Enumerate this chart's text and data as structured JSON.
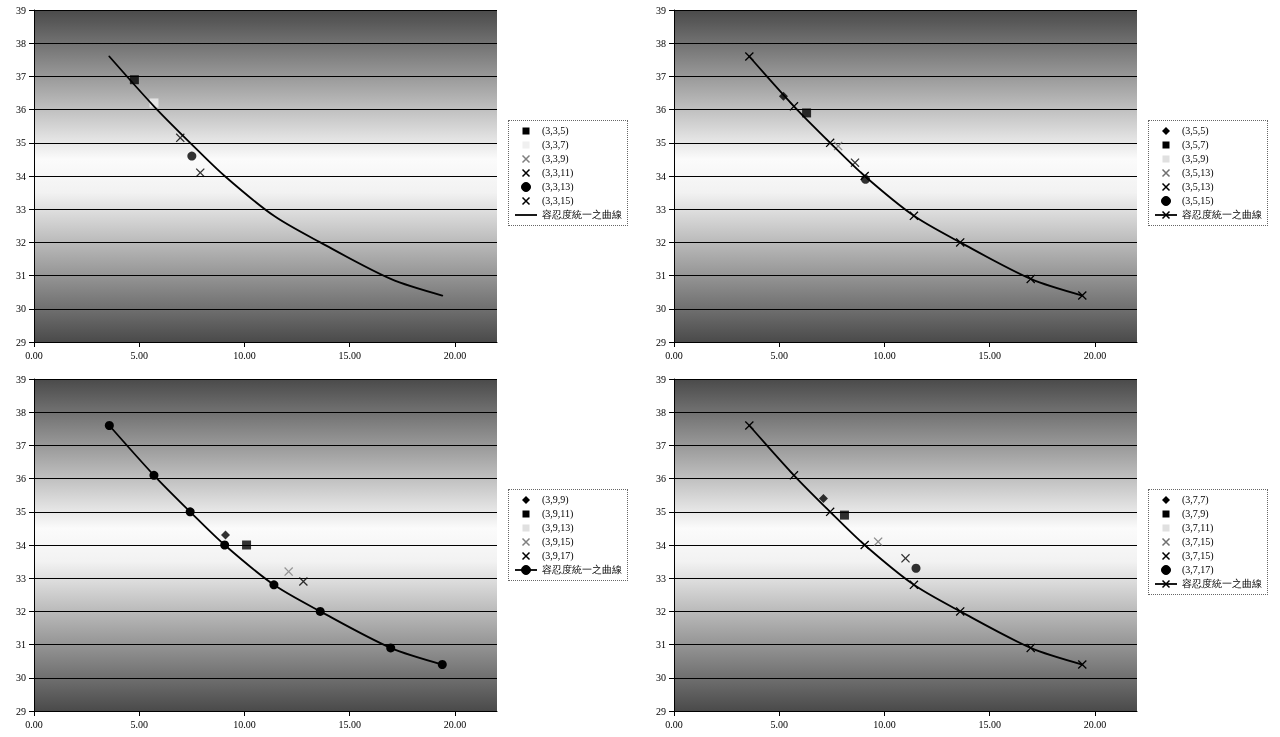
{
  "chart_data": [
    {
      "type": "scatter",
      "xlim": [
        0,
        22
      ],
      "xticks": [
        {
          "value": 0,
          "label": "0.00"
        },
        {
          "value": 5,
          "label": "5.00"
        },
        {
          "value": 10,
          "label": "10.00"
        },
        {
          "value": 15,
          "label": "15.00"
        },
        {
          "value": 20,
          "label": "20.00"
        }
      ],
      "ylim": [
        29,
        39
      ],
      "yticks": [
        29,
        30,
        31,
        32,
        33,
        34,
        35,
        36,
        37,
        38,
        39
      ],
      "grid": "y",
      "legend": "right",
      "series": [
        {
          "name": "(3,3,5)",
          "type": "scatter",
          "marker": "square",
          "color": "#000000",
          "x": [
            4.77
          ],
          "values": [
            36.9
          ]
        },
        {
          "name": "(3,3,7)",
          "type": "scatter",
          "marker": "square",
          "color": "#f0f0f0",
          "x": [
            5.7
          ],
          "values": [
            36.2
          ]
        },
        {
          "name": "(3,3,9)",
          "type": "scatter",
          "marker": "cross",
          "color": "#808080",
          "x": [
            null
          ],
          "values": [
            null
          ]
        },
        {
          "name": "(3,3,11)",
          "type": "scatter",
          "marker": "cross",
          "color": "#000000",
          "x": [
            6.95
          ],
          "values": [
            35.15
          ]
        },
        {
          "name": "(3,3,13)",
          "type": "scatter",
          "marker": "circle",
          "color": "#000000",
          "x": [
            7.5
          ],
          "values": [
            34.6
          ]
        },
        {
          "name": "(3,3,15)",
          "type": "scatter",
          "marker": "cross",
          "color": "#000000",
          "x": [
            7.9
          ],
          "values": [
            34.1
          ]
        },
        {
          "name": "容忍度統一之曲線",
          "type": "line",
          "marker": "none",
          "color": "#000000",
          "x": [
            3.58,
            5.7,
            7.42,
            9.06,
            11.4,
            13.6,
            16.95,
            19.4
          ],
          "values": [
            37.6,
            36.1,
            35.0,
            34.0,
            32.8,
            32.0,
            30.9,
            30.4
          ]
        }
      ]
    },
    {
      "type": "scatter",
      "xlim": [
        0,
        22
      ],
      "xticks": [
        {
          "value": 0,
          "label": "0.00"
        },
        {
          "value": 5,
          "label": "5.00"
        },
        {
          "value": 10,
          "label": "10.00"
        },
        {
          "value": 15,
          "label": "15.00"
        },
        {
          "value": 20,
          "label": "20.00"
        }
      ],
      "ylim": [
        29,
        39
      ],
      "yticks": [
        29,
        30,
        31,
        32,
        33,
        34,
        35,
        36,
        37,
        38,
        39
      ],
      "grid": "y",
      "legend": "right",
      "series": [
        {
          "name": "(3,5,5)",
          "type": "scatter",
          "marker": "diamond",
          "color": "#000000",
          "x": [
            5.2
          ],
          "values": [
            36.4
          ]
        },
        {
          "name": "(3,5,7)",
          "type": "scatter",
          "marker": "square",
          "color": "#000000",
          "x": [
            6.3
          ],
          "values": [
            35.9
          ]
        },
        {
          "name": "(3,5,9)",
          "type": "scatter",
          "marker": "square",
          "color": "#e0e0e0",
          "x": [
            null
          ],
          "values": [
            null
          ]
        },
        {
          "name": "(3,5,13)",
          "type": "scatter",
          "marker": "cross",
          "color": "#707070",
          "x": [
            7.8
          ],
          "values": [
            34.9
          ]
        },
        {
          "name": "(3,5,13)",
          "type": "scatter",
          "marker": "cross",
          "color": "#000000",
          "x": [
            8.6
          ],
          "values": [
            34.4
          ]
        },
        {
          "name": "(3,5,15)",
          "type": "scatter",
          "marker": "circle",
          "color": "#000000",
          "x": [
            9.1
          ],
          "values": [
            33.9
          ]
        },
        {
          "name": "容忍度統一之曲線",
          "type": "line",
          "marker": "cross",
          "color": "#000000",
          "x": [
            3.58,
            5.7,
            7.42,
            9.06,
            11.4,
            13.6,
            16.95,
            19.4
          ],
          "values": [
            37.6,
            36.1,
            35.0,
            34.0,
            32.8,
            32.0,
            30.9,
            30.4
          ]
        }
      ]
    },
    {
      "type": "scatter",
      "xlim": [
        0,
        22
      ],
      "xticks": [
        {
          "value": 0,
          "label": "0.00"
        },
        {
          "value": 5,
          "label": "5.00"
        },
        {
          "value": 10,
          "label": "10.00"
        },
        {
          "value": 15,
          "label": "15.00"
        },
        {
          "value": 20,
          "label": "20.00"
        }
      ],
      "ylim": [
        29,
        39
      ],
      "yticks": [
        29,
        30,
        31,
        32,
        33,
        34,
        35,
        36,
        37,
        38,
        39
      ],
      "grid": "y",
      "legend": "right",
      "series": [
        {
          "name": "(3,9,9)",
          "type": "scatter",
          "marker": "diamond",
          "color": "#000000",
          "x": [
            9.1
          ],
          "values": [
            34.3
          ]
        },
        {
          "name": "(3,9,11)",
          "type": "scatter",
          "marker": "square",
          "color": "#000000",
          "x": [
            10.1
          ],
          "values": [
            34.0
          ]
        },
        {
          "name": "(3,9,13)",
          "type": "scatter",
          "marker": "square",
          "color": "#e0e0e0",
          "x": [
            null
          ],
          "values": [
            null
          ]
        },
        {
          "name": "(3,9,15)",
          "type": "scatter",
          "marker": "cross",
          "color": "#808080",
          "x": [
            12.1
          ],
          "values": [
            33.2
          ]
        },
        {
          "name": "(3,9,17)",
          "type": "scatter",
          "marker": "cross",
          "color": "#000000",
          "x": [
            12.8
          ],
          "values": [
            32.9
          ]
        },
        {
          "name": "容忍度統一之曲線",
          "type": "line",
          "marker": "circle",
          "color": "#000000",
          "x": [
            3.58,
            5.7,
            7.42,
            9.06,
            11.4,
            13.6,
            16.95,
            19.4
          ],
          "values": [
            37.6,
            36.1,
            35.0,
            34.0,
            32.8,
            32.0,
            30.9,
            30.4
          ]
        }
      ]
    },
    {
      "type": "scatter",
      "xlim": [
        0,
        22
      ],
      "xticks": [
        {
          "value": 0,
          "label": "0.00"
        },
        {
          "value": 5,
          "label": "5.00"
        },
        {
          "value": 10,
          "label": "10.00"
        },
        {
          "value": 15,
          "label": "15.00"
        },
        {
          "value": 20,
          "label": "20.00"
        }
      ],
      "ylim": [
        29,
        39
      ],
      "yticks": [
        29,
        30,
        31,
        32,
        33,
        34,
        35,
        36,
        37,
        38,
        39
      ],
      "grid": "y",
      "legend": "right",
      "series": [
        {
          "name": "(3,7,7)",
          "type": "scatter",
          "marker": "diamond",
          "color": "#000000",
          "x": [
            7.1
          ],
          "values": [
            35.4
          ]
        },
        {
          "name": "(3,7,9)",
          "type": "scatter",
          "marker": "square",
          "color": "#000000",
          "x": [
            8.1
          ],
          "values": [
            34.9
          ]
        },
        {
          "name": "(3,7,11)",
          "type": "scatter",
          "marker": "square",
          "color": "#e0e0e0",
          "x": [
            null
          ],
          "values": [
            null
          ]
        },
        {
          "name": "(3,7,15)",
          "type": "scatter",
          "marker": "cross",
          "color": "#707070",
          "x": [
            9.7
          ],
          "values": [
            34.1
          ]
        },
        {
          "name": "(3,7,15)",
          "type": "scatter",
          "marker": "cross",
          "color": "#000000",
          "x": [
            11.0
          ],
          "values": [
            33.6
          ]
        },
        {
          "name": "(3,7,17)",
          "type": "scatter",
          "marker": "circle",
          "color": "#000000",
          "x": [
            11.5
          ],
          "values": [
            33.3
          ]
        },
        {
          "name": "容忍度統一之曲線",
          "type": "line",
          "marker": "cross",
          "color": "#000000",
          "x": [
            3.58,
            5.7,
            7.42,
            9.06,
            11.4,
            13.6,
            16.95,
            19.4
          ],
          "values": [
            37.6,
            36.1,
            35.0,
            34.0,
            32.8,
            32.0,
            30.9,
            30.4
          ]
        }
      ]
    }
  ]
}
